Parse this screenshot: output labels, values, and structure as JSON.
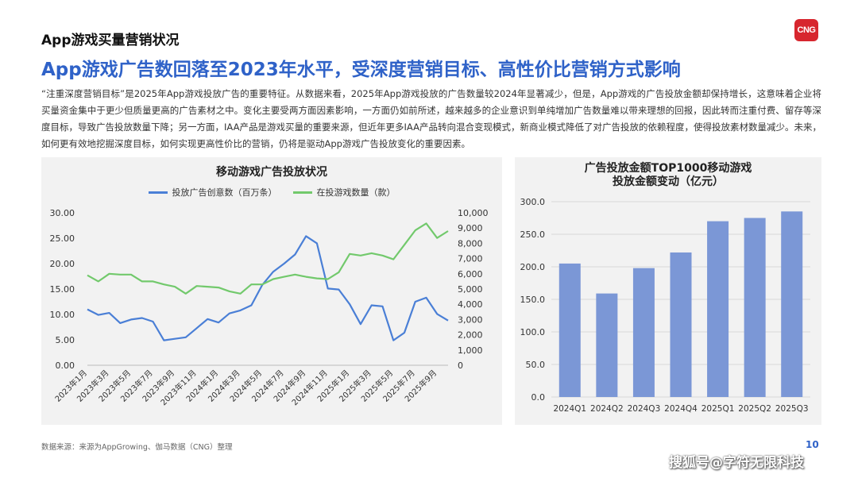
{
  "header": {
    "section_title": "App游戏买量营销状况",
    "logo_text": "CNG",
    "headline": "App游戏广告数回落至2023年水平，受深度营销目标、高性价比营销方式影响"
  },
  "body_text": "“注重深度营销目标”是2025年App游戏投放广告的重要特征。从数据来看，2025年App游戏投放的广告数量较2024年显著减少，但是，App游戏的广告投放金额却保持增长，这意味着企业将买量资金集中于更少但质量更高的广告素材之中。变化主要受两方面因素影响，一方面仍如前所述，越来越多的企业意识到单纯增加广告数量难以带来理想的回报，因此转而注重付费、留存等深度目标，导致广告投放数量下降；另一方面，IAA产品是游戏买量的重要来源，但近年更多IAA产品转向混合变现模式，新商业模式降低了对广告投放的依赖程度，使得投放素材数量减少。未来，如何更有效地挖掘深度目标，如何实现更高性价比的营销，仍将是驱动App游戏广告投放变化的重要因素。",
  "colors": {
    "accent": "#2f62c8",
    "series_blue": "#4a7fd6",
    "series_green": "#72c96c",
    "bar": "#7b97d6",
    "panel_bg": "#f2f2f2",
    "logo_red": "#d7262e"
  },
  "chart_data": [
    {
      "type": "line",
      "title": "移动游戏广告投放状况",
      "x": [
        "2023年1月",
        "2023年2月",
        "2023年3月",
        "2023年4月",
        "2023年5月",
        "2023年6月",
        "2023年7月",
        "2023年8月",
        "2023年9月",
        "2023年10月",
        "2023年11月",
        "2023年12月",
        "2024年1月",
        "2024年2月",
        "2024年3月",
        "2024年4月",
        "2024年5月",
        "2024年6月",
        "2024年7月",
        "2024年8月",
        "2024年9月",
        "2024年10月",
        "2024年11月",
        "2024年12月",
        "2025年1月",
        "2025年2月",
        "2025年3月",
        "2025年4月",
        "2025年5月",
        "2025年6月",
        "2025年7月",
        "2025年8月",
        "2025年9月",
        "2025年10月"
      ],
      "tick_labels": [
        "2023年1月",
        "2023年3月",
        "2023年5月",
        "2023年7月",
        "2023年9月",
        "2023年11月",
        "2024年1月",
        "2024年3月",
        "2024年5月",
        "2024年7月",
        "2024年9月",
        "2024年11月",
        "2025年1月",
        "2025年3月",
        "2025年5月",
        "2025年7月",
        "2025年9月"
      ],
      "series": [
        {
          "name": "投放广告创意数（百万条）",
          "axis": "left",
          "color": "#4a7fd6",
          "values": [
            11.0,
            9.9,
            10.3,
            8.3,
            9.0,
            9.3,
            8.6,
            4.9,
            5.2,
            5.5,
            7.3,
            9.1,
            8.4,
            10.2,
            10.8,
            11.8,
            15.8,
            18.4,
            20.0,
            21.8,
            25.4,
            24.0,
            15.1,
            14.9,
            12.0,
            8.1,
            11.8,
            11.6,
            4.9,
            6.4,
            12.5,
            13.3,
            10.1,
            8.8
          ]
        },
        {
          "name": "在投游戏数量（款）",
          "axis": "right",
          "color": "#72c96c",
          "values": [
            5900,
            5500,
            6000,
            5950,
            5950,
            5500,
            5500,
            5300,
            5150,
            4700,
            5200,
            5150,
            5100,
            4850,
            4700,
            5300,
            5300,
            5650,
            5800,
            5950,
            5800,
            5700,
            5650,
            6100,
            7300,
            7200,
            7350,
            7200,
            6950,
            7900,
            8850,
            9300,
            8350,
            8800
          ]
        }
      ],
      "y_left": {
        "ylim": [
          0,
          30
        ],
        "ticks": [
          "0.00",
          "5.00",
          "10.00",
          "15.00",
          "20.00",
          "25.00",
          "30.00"
        ]
      },
      "y_right": {
        "ylim": [
          0,
          10000
        ],
        "ticks": [
          "0",
          "1,000",
          "2,000",
          "3,000",
          "4,000",
          "5,000",
          "6,000",
          "7,000",
          "8,000",
          "9,000",
          "10,000"
        ]
      },
      "legend_placement": "top",
      "grid": false
    },
    {
      "type": "bar",
      "title_lines": [
        "广告投放金额TOP1000移动游戏",
        "投放金额变动（亿元）"
      ],
      "categories": [
        "2024Q1",
        "2024Q2",
        "2024Q3",
        "2024Q4",
        "2025Q1",
        "2025Q2",
        "2025Q3"
      ],
      "values": [
        205,
        159,
        198,
        222,
        270,
        275,
        285
      ],
      "ylim": [
        0,
        300
      ],
      "yticks": [
        "0.0",
        "50.0",
        "100.0",
        "150.0",
        "200.0",
        "250.0",
        "300.0"
      ],
      "grid": true
    }
  ],
  "footer": {
    "source": "数据来源：来源为AppGrowing、伽马数据（CNG）整理",
    "page_number": "10",
    "watermark": "搜狐号@字符无限科技"
  }
}
